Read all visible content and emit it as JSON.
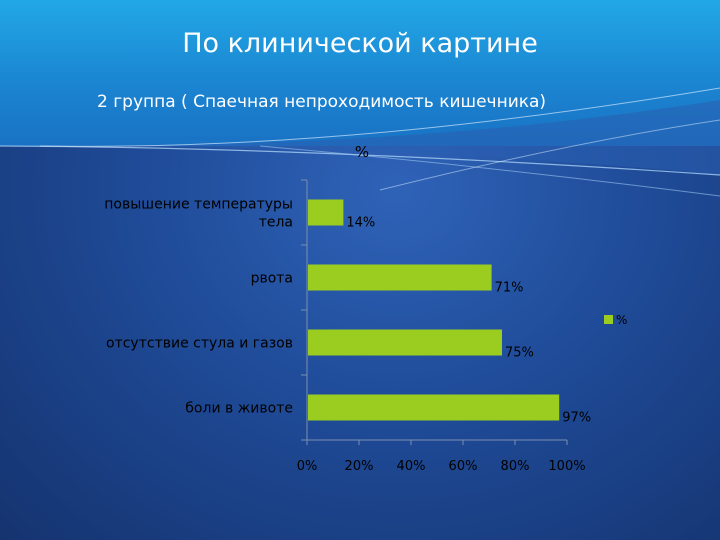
{
  "slide": {
    "title": "По клинической картине",
    "subtitle": "2 группа ( Спаечная непроходимость кишечника)"
  },
  "colors": {
    "bar": "#9acd1f",
    "header": "#1b86d2",
    "background": "#1f4b98"
  },
  "chart_data": {
    "type": "bar",
    "orientation": "horizontal",
    "title": "%",
    "categories": [
      [
        "повышение температуры",
        "тела"
      ],
      [
        "рвота"
      ],
      [
        "отсутствие стула и газов"
      ],
      [
        "боли в животе"
      ]
    ],
    "values": [
      14,
      71,
      75,
      97
    ],
    "data_labels": [
      "14%",
      "71%",
      "75%",
      "97%"
    ],
    "series": [
      {
        "name": "%",
        "values": [
          14,
          71,
          75,
          97
        ]
      }
    ],
    "x_ticks": [
      "0%",
      "20%",
      "40%",
      "60%",
      "80%",
      "100%"
    ],
    "xlim": [
      0,
      100
    ],
    "grid": false,
    "legend": "right"
  }
}
